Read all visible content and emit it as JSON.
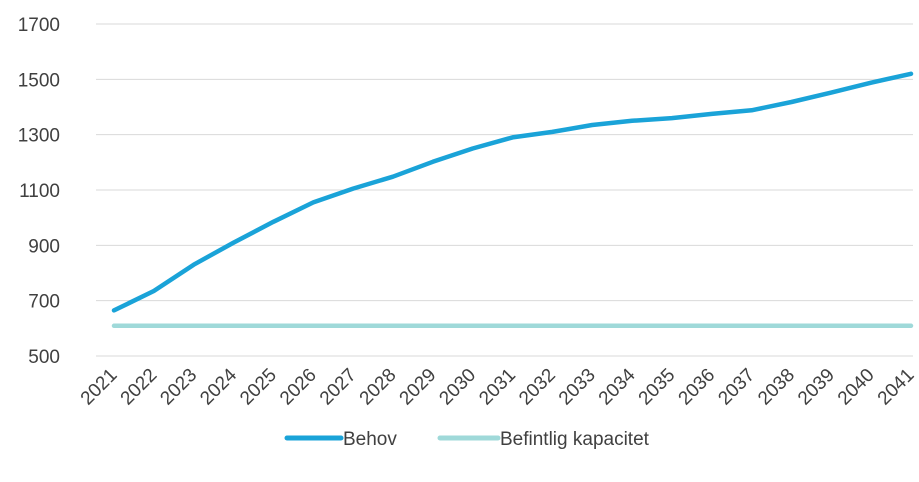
{
  "chart_data": {
    "type": "line",
    "title": "",
    "xlabel": "",
    "ylabel": "",
    "categories": [
      "2021",
      "2022",
      "2023",
      "2024",
      "2025",
      "2026",
      "2027",
      "2028",
      "2029",
      "2030",
      "2031",
      "2032",
      "2033",
      "2034",
      "2035",
      "2036",
      "2037",
      "2038",
      "2039",
      "2040",
      "2041"
    ],
    "ylim": [
      500,
      1700
    ],
    "yticks": [
      500,
      700,
      900,
      1100,
      1300,
      1500,
      1700
    ],
    "grid": true,
    "legend_position": "bottom",
    "series": [
      {
        "name": "Behov",
        "color": "#1aa3d8",
        "values": [
          665,
          735,
          830,
          910,
          985,
          1055,
          1105,
          1148,
          1202,
          1250,
          1290,
          1310,
          1335,
          1350,
          1360,
          1375,
          1388,
          1418,
          1452,
          1488,
          1520
        ]
      },
      {
        "name": "Befintlig kapacitet",
        "color": "#9fd9d9",
        "values": [
          609,
          609,
          609,
          609,
          609,
          609,
          609,
          609,
          609,
          609,
          609,
          609,
          609,
          609,
          609,
          609,
          609,
          609,
          609,
          609,
          609
        ]
      }
    ]
  }
}
